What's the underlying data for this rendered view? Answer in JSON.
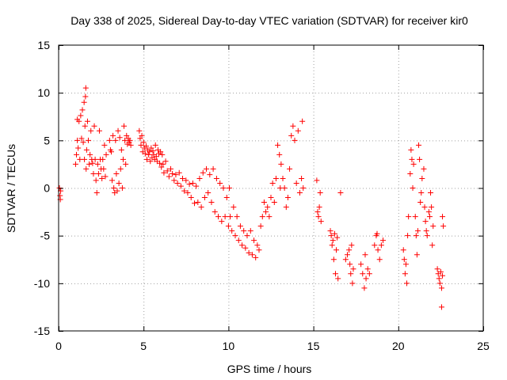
{
  "chart_data": {
    "type": "scatter",
    "title": "Day 338 of 2025, Sidereal Day-to-day VTEC variation (SDTVAR) for receiver kir0",
    "xlabel": "GPS time / hours",
    "ylabel": "SDTVAR / TECUs",
    "xlim": [
      0,
      25
    ],
    "ylim": [
      -15,
      15
    ],
    "xticks": [
      0,
      5,
      10,
      15,
      20,
      25
    ],
    "yticks": [
      -15,
      -10,
      -5,
      0,
      5,
      10,
      15
    ],
    "xtick_labels": [
      "0",
      "5",
      "10",
      "15",
      "20",
      "25"
    ],
    "ytick_labels": [
      "-15",
      "-10",
      "-5",
      "0",
      "5",
      "10",
      "15"
    ],
    "grid": true,
    "marker": "+",
    "color": "#ff0000",
    "series": [
      {
        "name": "SDTVAR",
        "points": [
          [
            0.05,
            0.0
          ],
          [
            0.08,
            -0.8
          ],
          [
            0.1,
            -1.2
          ],
          [
            0.12,
            -0.3
          ],
          [
            1.0,
            2.5
          ],
          [
            1.05,
            3.5
          ],
          [
            1.1,
            5.0
          ],
          [
            1.1,
            7.2
          ],
          [
            1.15,
            4.2
          ],
          [
            1.2,
            7.0
          ],
          [
            1.25,
            3.0
          ],
          [
            1.3,
            7.6
          ],
          [
            1.35,
            5.2
          ],
          [
            1.4,
            8.2
          ],
          [
            1.45,
            4.8
          ],
          [
            1.5,
            9.0
          ],
          [
            1.52,
            3.0
          ],
          [
            1.55,
            6.5
          ],
          [
            1.58,
            9.6
          ],
          [
            1.6,
            10.5
          ],
          [
            1.62,
            2.0
          ],
          [
            1.65,
            4.0
          ],
          [
            1.7,
            7.0
          ],
          [
            1.75,
            5.0
          ],
          [
            1.8,
            2.5
          ],
          [
            1.85,
            3.5
          ],
          [
            1.9,
            6.0
          ],
          [
            1.95,
            3.0
          ],
          [
            2.0,
            2.6
          ],
          [
            2.05,
            1.5
          ],
          [
            2.1,
            6.5
          ],
          [
            2.15,
            3.0
          ],
          [
            2.2,
            0.8
          ],
          [
            2.25,
            -0.5
          ],
          [
            2.3,
            2.5
          ],
          [
            2.35,
            1.5
          ],
          [
            2.4,
            6.0
          ],
          [
            2.45,
            3.0
          ],
          [
            2.5,
            2.0
          ],
          [
            2.55,
            1.0
          ],
          [
            2.6,
            3.0
          ],
          [
            2.65,
            2.0
          ],
          [
            2.7,
            4.5
          ],
          [
            2.75,
            1.2
          ],
          [
            2.8,
            3.5
          ],
          [
            3.0,
            5.0
          ],
          [
            3.05,
            4.0
          ],
          [
            3.1,
            3.8
          ],
          [
            3.15,
            0.8
          ],
          [
            3.2,
            5.5
          ],
          [
            3.25,
            0.0
          ],
          [
            3.3,
            -0.5
          ],
          [
            3.35,
            5.0
          ],
          [
            3.4,
            1.5
          ],
          [
            3.45,
            -0.3
          ],
          [
            3.5,
            6.0
          ],
          [
            3.55,
            0.5
          ],
          [
            3.6,
            5.3
          ],
          [
            3.65,
            2.0
          ],
          [
            3.7,
            4.0
          ],
          [
            3.75,
            0.0
          ],
          [
            3.8,
            3.0
          ],
          [
            3.85,
            6.5
          ],
          [
            3.9,
            5.0
          ],
          [
            3.95,
            2.5
          ],
          [
            4.0,
            5.5
          ],
          [
            4.05,
            4.6
          ],
          [
            4.1,
            5.2
          ],
          [
            4.15,
            4.8
          ],
          [
            4.2,
            5.0
          ],
          [
            4.25,
            4.5
          ],
          [
            4.75,
            6.0
          ],
          [
            4.8,
            5.2
          ],
          [
            4.85,
            4.5
          ],
          [
            4.9,
            5.5
          ],
          [
            4.95,
            3.8
          ],
          [
            5.0,
            4.8
          ],
          [
            5.05,
            4.2
          ],
          [
            5.1,
            3.6
          ],
          [
            5.15,
            4.4
          ],
          [
            5.2,
            3.0
          ],
          [
            5.25,
            4.0
          ],
          [
            5.3,
            3.5
          ],
          [
            5.35,
            3.8
          ],
          [
            5.4,
            2.8
          ],
          [
            5.45,
            4.2
          ],
          [
            5.5,
            3.2
          ],
          [
            5.55,
            3.9
          ],
          [
            5.6,
            3.5
          ],
          [
            5.65,
            3.0
          ],
          [
            5.7,
            4.5
          ],
          [
            5.75,
            3.3
          ],
          [
            5.8,
            2.8
          ],
          [
            5.85,
            4.0
          ],
          [
            5.9,
            3.6
          ],
          [
            5.95,
            2.6
          ],
          [
            6.0,
            3.8
          ],
          [
            6.05,
            2.2
          ],
          [
            6.1,
            3.5
          ],
          [
            6.15,
            2.5
          ],
          [
            6.2,
            1.6
          ],
          [
            6.3,
            2.8
          ],
          [
            6.4,
            1.8
          ],
          [
            6.5,
            1.2
          ],
          [
            6.6,
            2.0
          ],
          [
            6.7,
            1.5
          ],
          [
            6.8,
            0.8
          ],
          [
            6.9,
            1.4
          ],
          [
            7.0,
            0.5
          ],
          [
            7.1,
            1.6
          ],
          [
            7.2,
            0.2
          ],
          [
            7.3,
            1.0
          ],
          [
            7.4,
            -0.3
          ],
          [
            7.5,
            0.8
          ],
          [
            7.6,
            -0.5
          ],
          [
            7.7,
            0.4
          ],
          [
            7.8,
            -1.0
          ],
          [
            7.9,
            0.5
          ],
          [
            8.0,
            -1.6
          ],
          [
            8.1,
            0.2
          ],
          [
            8.2,
            -1.5
          ],
          [
            8.3,
            1.0
          ],
          [
            8.4,
            -2.0
          ],
          [
            8.5,
            1.6
          ],
          [
            8.6,
            -1.0
          ],
          [
            8.7,
            2.0
          ],
          [
            8.8,
            -0.5
          ],
          [
            8.9,
            1.4
          ],
          [
            9.0,
            -1.5
          ],
          [
            9.1,
            2.0
          ],
          [
            9.2,
            -2.5
          ],
          [
            9.3,
            1.0
          ],
          [
            9.4,
            -3.0
          ],
          [
            9.5,
            0.5
          ],
          [
            9.6,
            -3.5
          ],
          [
            9.7,
            0.0
          ],
          [
            9.8,
            -3.0
          ],
          [
            9.9,
            -1.0
          ],
          [
            10.0,
            -4.0
          ],
          [
            10.05,
            0.0
          ],
          [
            10.1,
            -3.0
          ],
          [
            10.2,
            -4.5
          ],
          [
            10.3,
            -2.0
          ],
          [
            10.4,
            -5.0
          ],
          [
            10.5,
            -3.0
          ],
          [
            10.6,
            -5.5
          ],
          [
            10.7,
            -4.0
          ],
          [
            10.8,
            -6.0
          ],
          [
            10.9,
            -4.5
          ],
          [
            11.0,
            -6.3
          ],
          [
            11.1,
            -5.0
          ],
          [
            11.2,
            -6.8
          ],
          [
            11.3,
            -4.5
          ],
          [
            11.4,
            -7.0
          ],
          [
            11.5,
            -5.5
          ],
          [
            11.6,
            -7.3
          ],
          [
            11.7,
            -6.0
          ],
          [
            11.8,
            -6.5
          ],
          [
            11.9,
            -4.0
          ],
          [
            12.0,
            -3.0
          ],
          [
            12.1,
            -1.5
          ],
          [
            12.2,
            -2.5
          ],
          [
            12.3,
            -2.0
          ],
          [
            12.4,
            -3.0
          ],
          [
            12.5,
            -1.0
          ],
          [
            12.6,
            0.5
          ],
          [
            12.7,
            -1.5
          ],
          [
            12.8,
            1.0
          ],
          [
            12.9,
            4.5
          ],
          [
            13.0,
            3.5
          ],
          [
            13.05,
            0.0
          ],
          [
            13.1,
            2.5
          ],
          [
            13.2,
            1.0
          ],
          [
            13.3,
            0.0
          ],
          [
            13.4,
            -2.0
          ],
          [
            13.5,
            -1.0
          ],
          [
            13.6,
            2.0
          ],
          [
            13.7,
            5.5
          ],
          [
            13.8,
            6.5
          ],
          [
            13.9,
            5.0
          ],
          [
            14.0,
            0.5
          ],
          [
            14.1,
            6.0
          ],
          [
            14.2,
            -0.5
          ],
          [
            14.3,
            1.0
          ],
          [
            14.35,
            7.0
          ],
          [
            14.4,
            0.0
          ],
          [
            15.2,
            0.8
          ],
          [
            15.25,
            -2.5
          ],
          [
            15.3,
            -3.0
          ],
          [
            15.35,
            -2.0
          ],
          [
            15.4,
            -0.5
          ],
          [
            15.45,
            -3.5
          ],
          [
            16.0,
            -4.5
          ],
          [
            16.05,
            -5.0
          ],
          [
            16.1,
            -6.0
          ],
          [
            16.15,
            -5.5
          ],
          [
            16.2,
            -7.5
          ],
          [
            16.25,
            -4.8
          ],
          [
            16.3,
            -9.0
          ],
          [
            16.35,
            -6.5
          ],
          [
            16.4,
            -5.2
          ],
          [
            16.45,
            -9.5
          ],
          [
            16.6,
            -0.5
          ],
          [
            16.9,
            -7.5
          ],
          [
            17.0,
            -7.0
          ],
          [
            17.1,
            -6.5
          ],
          [
            17.15,
            -8.0
          ],
          [
            17.2,
            -9.0
          ],
          [
            17.25,
            -6.0
          ],
          [
            17.3,
            -10.0
          ],
          [
            17.35,
            -8.5
          ],
          [
            17.8,
            -8.0
          ],
          [
            17.9,
            -9.0
          ],
          [
            18.0,
            -10.5
          ],
          [
            18.05,
            -7.0
          ],
          [
            18.1,
            -9.5
          ],
          [
            18.2,
            -8.5
          ],
          [
            18.3,
            -9.0
          ],
          [
            18.6,
            -6.0
          ],
          [
            18.7,
            -5.0
          ],
          [
            18.75,
            -4.8
          ],
          [
            18.8,
            -6.5
          ],
          [
            18.9,
            -7.5
          ],
          [
            19.0,
            -6.0
          ],
          [
            19.1,
            -5.5
          ],
          [
            20.3,
            -6.5
          ],
          [
            20.35,
            -7.5
          ],
          [
            20.4,
            -9.0
          ],
          [
            20.45,
            -8.0
          ],
          [
            20.5,
            -10.0
          ],
          [
            20.55,
            -5.0
          ],
          [
            20.6,
            -3.0
          ],
          [
            20.7,
            1.5
          ],
          [
            20.75,
            4.0
          ],
          [
            20.8,
            3.0
          ],
          [
            20.85,
            0.0
          ],
          [
            20.9,
            2.5
          ],
          [
            21.0,
            -3.0
          ],
          [
            21.05,
            -5.0
          ],
          [
            21.1,
            -7.0
          ],
          [
            21.15,
            -4.5
          ],
          [
            21.2,
            4.5
          ],
          [
            21.25,
            3.0
          ],
          [
            21.3,
            -1.5
          ],
          [
            21.35,
            -0.5
          ],
          [
            21.4,
            1.0
          ],
          [
            21.5,
            2.0
          ],
          [
            21.55,
            -2.0
          ],
          [
            21.6,
            -3.5
          ],
          [
            21.65,
            -4.5
          ],
          [
            21.7,
            -5.0
          ],
          [
            21.8,
            -2.5
          ],
          [
            21.85,
            -3.0
          ],
          [
            21.9,
            -0.5
          ],
          [
            21.95,
            -2.0
          ],
          [
            22.0,
            -6.0
          ],
          [
            22.05,
            -4.0
          ],
          [
            22.3,
            -8.5
          ],
          [
            22.35,
            -9.0
          ],
          [
            22.4,
            -9.5
          ],
          [
            22.45,
            -10.0
          ],
          [
            22.5,
            -8.8
          ],
          [
            22.55,
            -10.5
          ],
          [
            22.6,
            -9.2
          ],
          [
            22.55,
            -12.5
          ],
          [
            22.6,
            -3.0
          ],
          [
            22.65,
            -4.0
          ]
        ]
      }
    ]
  }
}
